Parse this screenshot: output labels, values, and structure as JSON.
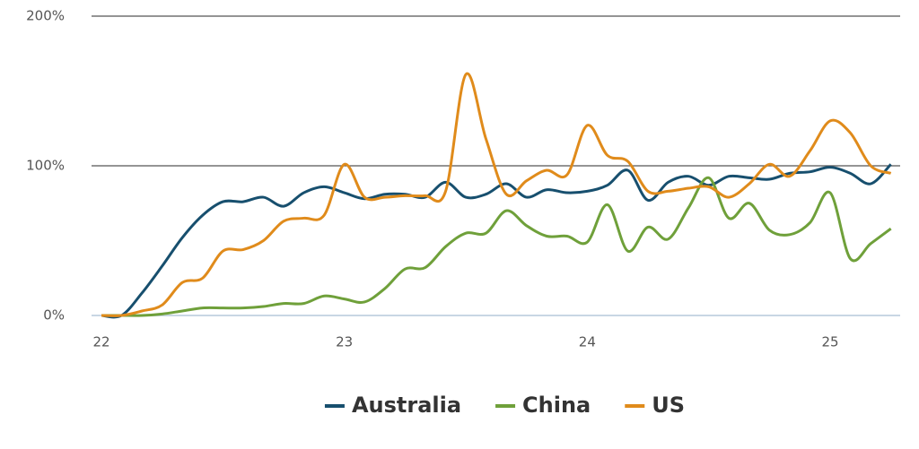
{
  "chart_data": {
    "type": "line",
    "x": [
      22,
      22.083,
      22.167,
      22.25,
      22.333,
      22.417,
      22.5,
      22.583,
      22.667,
      22.75,
      22.833,
      22.917,
      23,
      23.083,
      23.167,
      23.25,
      23.333,
      23.417,
      23.5,
      23.583,
      23.667,
      23.75,
      23.833,
      23.917,
      24,
      24.083,
      24.167,
      24.25,
      24.333,
      24.417,
      24.5,
      24.583,
      24.667,
      24.75,
      24.833,
      24.917,
      25,
      25.083,
      25.167,
      25.25
    ],
    "series": [
      {
        "name": "Australia",
        "color": "#174f6e",
        "values": [
          0,
          0,
          15,
          33,
          52,
          67,
          76,
          76,
          79,
          73,
          82,
          86,
          82,
          78,
          81,
          81,
          79,
          89,
          79,
          81,
          88,
          79,
          84,
          82,
          83,
          87,
          97,
          77,
          89,
          93,
          87,
          93,
          92,
          91,
          95,
          96,
          99,
          95,
          88,
          101
        ]
      },
      {
        "name": "China",
        "color": "#6fa03a",
        "values": [
          0,
          0,
          0,
          1,
          3,
          5,
          5,
          5,
          6,
          8,
          8,
          13,
          11,
          9,
          18,
          31,
          32,
          46,
          55,
          55,
          70,
          60,
          53,
          53,
          49,
          74,
          43,
          59,
          51,
          72,
          92,
          65,
          75,
          57,
          54,
          62,
          82,
          38,
          48,
          58
        ]
      },
      {
        "name": "US",
        "color": "#e08b1b",
        "values": [
          0,
          0,
          3,
          7,
          22,
          25,
          43,
          44,
          50,
          63,
          65,
          67,
          101,
          79,
          79,
          80,
          80,
          83,
          161,
          118,
          81,
          90,
          97,
          94,
          127,
          107,
          103,
          83,
          83,
          85,
          86,
          79,
          88,
          101,
          93,
          110,
          130,
          122,
          100,
          95
        ]
      }
    ],
    "xlim": [
      22,
      25.3
    ],
    "xticks": [
      22,
      23,
      24,
      25
    ],
    "ylim": [
      0,
      200
    ],
    "yticks": [
      {
        "value": 0,
        "label": "0%"
      },
      {
        "value": 100,
        "label": "100%"
      },
      {
        "value": 200,
        "label": "200%"
      }
    ],
    "grid": true,
    "legend": "bottom"
  }
}
